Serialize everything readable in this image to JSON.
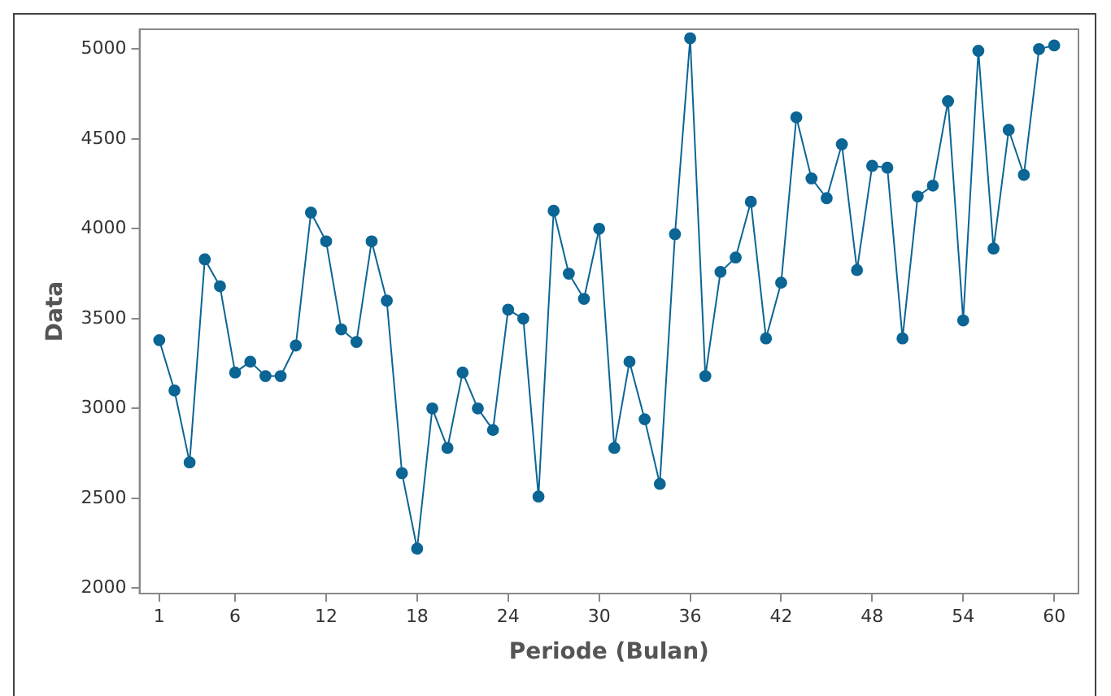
{
  "chart_data": {
    "type": "line",
    "xlabel": "Periode (Bulan)",
    "ylabel": "Data",
    "x": [
      1,
      2,
      3,
      4,
      5,
      6,
      7,
      8,
      9,
      10,
      11,
      12,
      13,
      14,
      15,
      16,
      17,
      18,
      19,
      20,
      21,
      22,
      23,
      24,
      25,
      26,
      27,
      28,
      29,
      30,
      31,
      32,
      33,
      34,
      35,
      36,
      37,
      38,
      39,
      40,
      41,
      42,
      43,
      44,
      45,
      46,
      47,
      48,
      49,
      50,
      51,
      52,
      53,
      54,
      55,
      56,
      57,
      58,
      59,
      60
    ],
    "series": [
      {
        "color": "#0b6595",
        "values": [
          3380,
          3100,
          2700,
          3830,
          3680,
          3200,
          3260,
          3180,
          3180,
          3350,
          4090,
          3930,
          3440,
          3370,
          3930,
          3600,
          2640,
          2220,
          3000,
          2780,
          3200,
          3000,
          2880,
          3550,
          3500,
          2510,
          4100,
          3750,
          3610,
          4000,
          2780,
          3260,
          2940,
          2580,
          3970,
          5060,
          3180,
          3760,
          3840,
          4150,
          3390,
          3700,
          4620,
          4280,
          4170,
          4470,
          3770,
          4350,
          4340,
          3390,
          4180,
          4240,
          4710,
          3490,
          4990,
          3890,
          4550,
          4300,
          5000,
          5020
        ]
      }
    ],
    "xlim": [
      -0.3,
      61.6
    ],
    "xticks": [
      1,
      6,
      12,
      18,
      24,
      30,
      36,
      42,
      48,
      54,
      60
    ],
    "ylim": [
      1970,
      5110
    ],
    "yticks": [
      2000,
      2500,
      3000,
      3500,
      4000,
      4500,
      5000
    ],
    "grid": false,
    "legend": false,
    "marker": "circle",
    "line_style": "solid"
  }
}
